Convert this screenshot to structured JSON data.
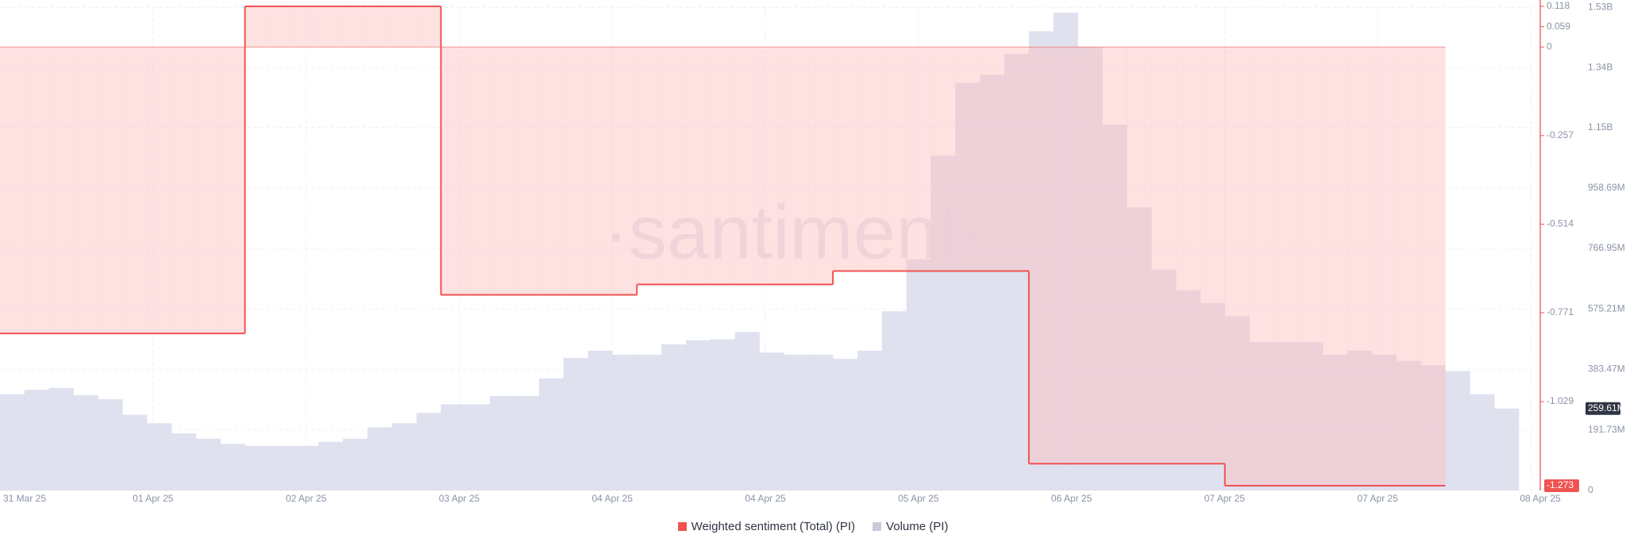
{
  "chart_data": {
    "type": "combo",
    "watermark": "·santiment·",
    "xtick_labels": [
      "31 Mar 25",
      "01 Apr 25",
      "02 Apr 25",
      "03 Apr 25",
      "04 Apr 25",
      "04 Apr 25",
      "05 Apr 25",
      "06 Apr 25",
      "07 Apr 25",
      "07 Apr 25",
      "08 Apr 25"
    ],
    "ylim": [
      -1.273,
      0.118
    ],
    "yticks": [
      0.118,
      0.059,
      0,
      -0.257,
      -0.514,
      -0.771,
      -1.029
    ],
    "y2lim": [
      0,
      1533840000
    ],
    "y2ticks": [
      {
        "value": 0,
        "label": "0"
      },
      {
        "value": 191730000,
        "label": "191.73M"
      },
      {
        "value": 383470000,
        "label": "383.47M"
      },
      {
        "value": 575210000,
        "label": "575.21M"
      },
      {
        "value": 766950000,
        "label": "766.95M"
      },
      {
        "value": 958690000,
        "label": "958.69M"
      },
      {
        "value": 1150000000,
        "label": "1.15B"
      },
      {
        "value": 1340000000,
        "label": "1.34B"
      },
      {
        "value": 1530000000,
        "label": "1.53B"
      }
    ],
    "grid": true,
    "series": [
      {
        "name": "Weighted sentiment (Total) (PI)",
        "color": "#ef5350",
        "kind": "step",
        "last_label": {
          "value": -1.273,
          "label": "-1.273"
        },
        "values": [
          -0.831,
          -0.831,
          -0.831,
          -0.831,
          -0.831,
          -0.831,
          -0.831,
          -0.831,
          -0.831,
          -0.831,
          0.118,
          0.118,
          0.118,
          0.118,
          0.118,
          0.118,
          0.118,
          0.118,
          -0.719,
          -0.719,
          -0.719,
          -0.719,
          -0.719,
          -0.719,
          -0.719,
          -0.719,
          -0.689,
          -0.689,
          -0.689,
          -0.689,
          -0.689,
          -0.689,
          -0.689,
          -0.689,
          -0.65,
          -0.65,
          -0.65,
          -0.65,
          -0.65,
          -0.65,
          -0.65,
          -0.65,
          -1.209,
          -1.209,
          -1.209,
          -1.209,
          -1.209,
          -1.209,
          -1.209,
          -1.209,
          -1.273,
          -1.273,
          -1.273,
          -1.273,
          -1.273,
          -1.273,
          -1.273,
          -1.273,
          -1.273,
          null,
          null,
          null
        ]
      },
      {
        "name": "Volume (PI)",
        "color": "#d9dcec",
        "kind": "bar",
        "axis": "y2",
        "last_label": {
          "value": 259610000,
          "label": "259.61M"
        },
        "values": [
          305000000,
          319000000,
          325000000,
          302000000,
          289000000,
          240000000,
          213000000,
          181000000,
          164000000,
          148000000,
          141000000,
          141000000,
          141000000,
          154000000,
          164000000,
          200000000,
          213000000,
          246000000,
          273000000,
          273000000,
          299000000,
          299000000,
          355000000,
          420000000,
          443000000,
          430000000,
          430000000,
          463000000,
          476000000,
          479000000,
          502000000,
          437000000,
          430000000,
          430000000,
          417000000,
          443000000,
          568000000,
          732000000,
          1061000000,
          1291000000,
          1317000000,
          1383000000,
          1455000000,
          1514000000,
          1406000000,
          1159000000,
          897000000,
          700000000,
          634000000,
          594000000,
          552000000,
          470000000,
          470000000,
          470000000,
          430000000,
          443000000,
          430000000,
          411000000,
          397000000,
          378000000,
          305000000,
          259610000
        ]
      }
    ]
  }
}
